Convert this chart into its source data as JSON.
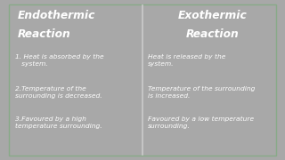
{
  "bg_color": "#2d6040",
  "frame_color": "#a8a8a8",
  "text_color": "#ffffff",
  "divider_color": "#cccccc",
  "left_title_line1": "Endothermic",
  "left_title_line2": "Reaction",
  "right_title_line1": "Exothermic",
  "right_title_line2": "Reaction",
  "left_points": [
    "1. Heat is absorbed by the\n   system.",
    "2.Temperature of the\nsurrounding is decreased.",
    "3.Favoured by a high\ntemperature surrounding."
  ],
  "right_points": [
    "Heat is released by the\nsystem.",
    "Temperature of the surrounding\nis increased.",
    "Favoured by a low temperature\nsurrounding."
  ],
  "figsize": [
    3.2,
    1.8
  ],
  "dpi": 100
}
